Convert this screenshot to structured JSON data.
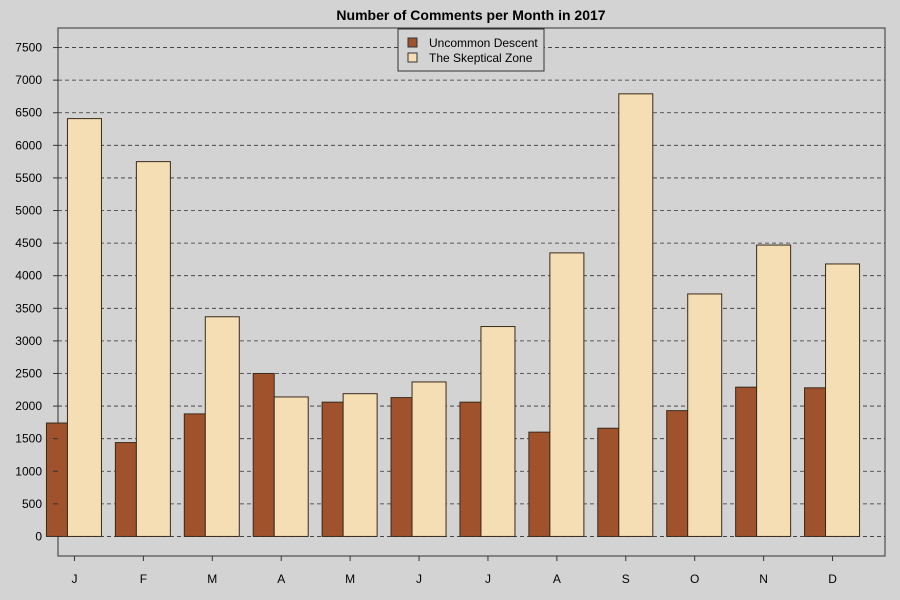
{
  "chart_data": {
    "type": "bar",
    "title": "Number of Comments per Month in 2017",
    "xlabel": "",
    "ylabel": "",
    "categories": [
      "J",
      "F",
      "M",
      "A",
      "M",
      "J",
      "J",
      "A",
      "S",
      "O",
      "N",
      "D"
    ],
    "series": [
      {
        "name": "Uncommon Descent",
        "color": "#a0522d",
        "values": [
          1740,
          1440,
          1880,
          2500,
          2060,
          2130,
          2060,
          1600,
          1660,
          1930,
          2290,
          2280
        ]
      },
      {
        "name": "The Skeptical Zone",
        "color": "#f5deb3",
        "values": [
          6410,
          5750,
          3370,
          2140,
          2190,
          2370,
          3220,
          4350,
          6790,
          3720,
          4470,
          4180
        ]
      }
    ],
    "ylim": [
      -300,
      7800
    ],
    "yticks": [
      0,
      500,
      1000,
      1500,
      2000,
      2500,
      3000,
      3500,
      4000,
      4500,
      5000,
      5500,
      6000,
      6500,
      7000,
      7500
    ],
    "grid": true,
    "legend_position": "top-center"
  }
}
